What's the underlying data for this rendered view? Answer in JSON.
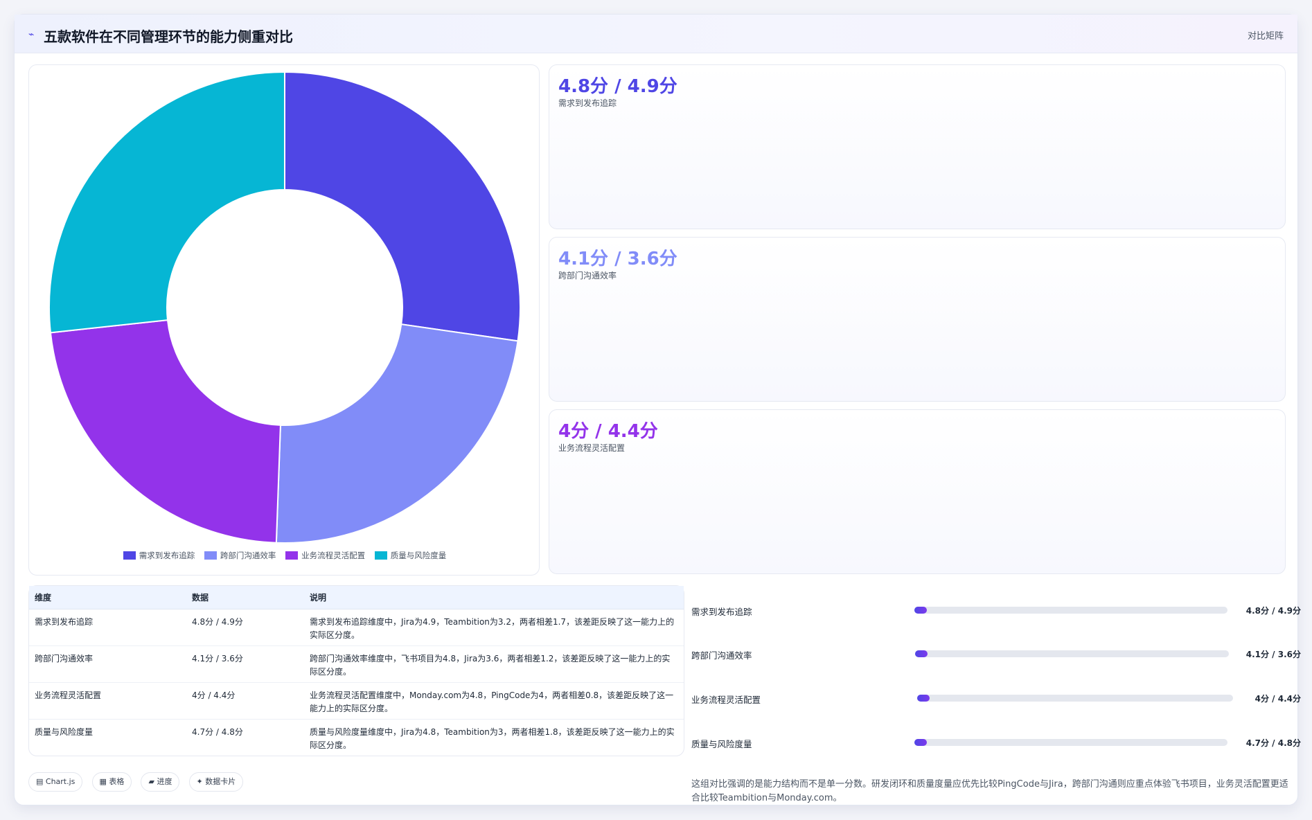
{
  "header": {
    "icon": "trend-icon",
    "title": "五款软件在不同管理环节的能力侧重对比",
    "right_label": "对比矩阵"
  },
  "chart_data": {
    "type": "pie",
    "donut": true,
    "categories": [
      "需求到发布追踪",
      "跨部门沟通效率",
      "业务流程灵活配置",
      "质量与风险度量"
    ],
    "values": [
      4.8,
      4.1,
      4.0,
      4.7
    ],
    "colors": [
      "#4f46e5",
      "#818cf8",
      "#9333ea",
      "#06b6d4"
    ],
    "legend_position": "bottom"
  },
  "stats": [
    {
      "value": "4.8分 / 4.9分",
      "label": "需求到发布追踪",
      "color": "#4f46e5"
    },
    {
      "value": "4.1分 / 3.6分",
      "label": "跨部门沟通效率",
      "color": "#818cf8"
    },
    {
      "value": "4分 / 4.4分",
      "label": "业务流程灵活配置",
      "color": "#9333ea"
    }
  ],
  "table": {
    "headers": [
      "维度",
      "数据",
      "说明"
    ],
    "rows": [
      [
        "需求到发布追踪",
        "4.8分 / 4.9分",
        "需求到发布追踪维度中，Jira为4.9，Teambition为3.2，两者相差1.7，该差距反映了这一能力上的实际区分度。"
      ],
      [
        "跨部门沟通效率",
        "4.1分 / 3.6分",
        "跨部门沟通效率维度中，飞书项目为4.8，Jira为3.6，两者相差1.2，该差距反映了这一能力上的实际区分度。"
      ],
      [
        "业务流程灵活配置",
        "4分 / 4.4分",
        "业务流程灵活配置维度中，Monday.com为4.8，PingCode为4，两者相差0.8，该差距反映了这一能力上的实际区分度。"
      ],
      [
        "质量与风险度量",
        "4.7分 / 4.8分",
        "质量与风险度量维度中，Jira为4.8，Teambition为3，两者相差1.8，该差距反映了这一能力上的实际区分度。"
      ]
    ]
  },
  "tags": [
    {
      "icon": "chart-icon",
      "label": "Chart.js"
    },
    {
      "icon": "table-icon",
      "label": "表格"
    },
    {
      "icon": "progress-icon",
      "label": "进度"
    },
    {
      "icon": "card-icon",
      "label": "数据卡片"
    }
  ],
  "progress": [
    {
      "label": "需求到发布追踪",
      "value": "4.8分 / 4.9分",
      "fill": 0.04
    },
    {
      "label": "跨部门沟通效率",
      "value": "4.1分 / 3.6分",
      "fill": 0.04
    },
    {
      "label": "业务流程灵活配置",
      "value": "4分 / 4.4分",
      "fill": 0.04
    },
    {
      "label": "质量与风险度量",
      "value": "4.7分 / 4.8分",
      "fill": 0.04
    }
  ],
  "note": "这组对比强调的是能力结构而不是单一分数。研发闭环和质量度量应优先比较PingCode与Jira，跨部门沟通则应重点体验飞书项目，业务灵活配置更适合比较Teambition与Monday.com。"
}
